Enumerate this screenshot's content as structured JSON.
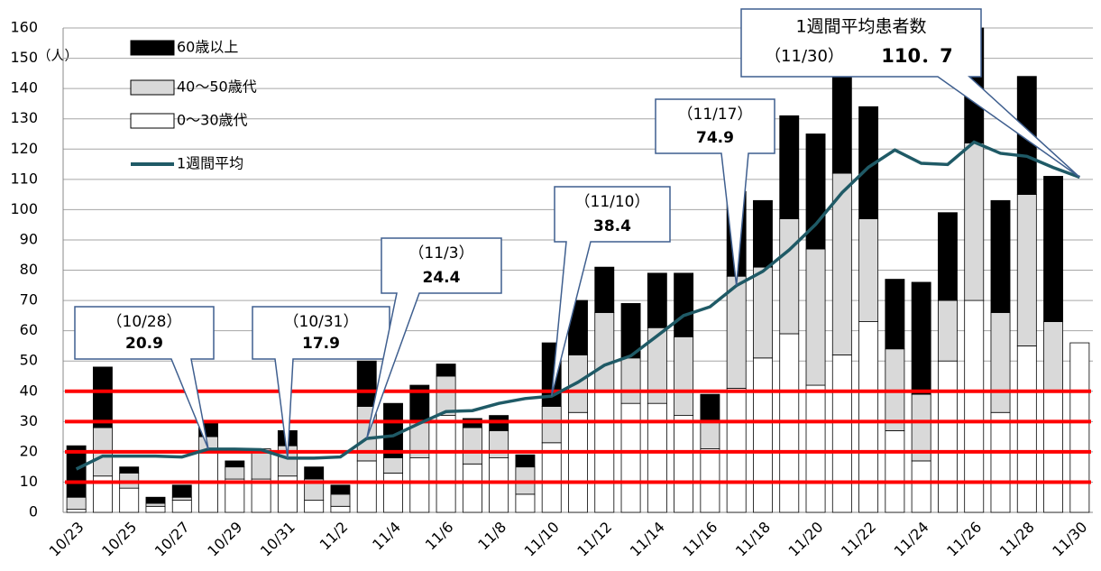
{
  "chart_data": {
    "type": "bar-line",
    "y_unit": "（人）",
    "categories": [
      "10/23",
      null,
      "10/25",
      null,
      "10/27",
      null,
      "10/29",
      null,
      "10/31",
      null,
      "11/2",
      null,
      "11/4",
      null,
      "11/6",
      null,
      "11/8",
      null,
      "11/10",
      null,
      "11/12",
      null,
      "11/14",
      null,
      "11/16",
      null,
      "11/18",
      null,
      "11/20",
      null,
      "11/22",
      null,
      "11/24",
      null,
      "11/26",
      null,
      "11/28",
      null,
      "11/30"
    ],
    "series": [
      {
        "name": "60歳以上",
        "kind": "bar",
        "color": "#000000",
        "values": [
          17,
          20,
          2,
          2,
          4,
          5,
          2,
          0,
          5,
          4,
          3,
          15,
          18,
          12,
          4,
          3,
          5,
          4,
          21,
          18,
          15,
          18,
          18,
          21,
          9,
          28,
          22,
          34,
          38,
          38,
          37,
          23,
          37,
          29,
          38,
          37,
          39,
          48,
          0
        ]
      },
      {
        "name": "40〜50歳代",
        "kind": "bar",
        "color": "#d9d9d9",
        "values": [
          4,
          16,
          5,
          1,
          1,
          5,
          4,
          10,
          10,
          7,
          4,
          18,
          5,
          12,
          13,
          12,
          9,
          9,
          12,
          19,
          26,
          15,
          25,
          26,
          9,
          37,
          30,
          38,
          45,
          60,
          34,
          27,
          22,
          20,
          52,
          33,
          50,
          23,
          0
        ]
      },
      {
        "name": "0〜30歳代",
        "kind": "bar",
        "color": "#ffffff",
        "values": [
          1,
          12,
          8,
          2,
          4,
          20,
          11,
          11,
          12,
          4,
          2,
          17,
          13,
          18,
          32,
          16,
          18,
          6,
          23,
          33,
          40,
          36,
          36,
          32,
          21,
          41,
          51,
          59,
          42,
          52,
          63,
          27,
          17,
          50,
          70,
          33,
          55,
          40,
          56
        ]
      },
      {
        "name": "1週間平均",
        "kind": "line",
        "color": "#1f5a66",
        "values": [
          14.3,
          18.6,
          18.6,
          18.6,
          18.3,
          20.9,
          20.9,
          20.7,
          17.9,
          17.9,
          18.3,
          24.4,
          25.3,
          29.4,
          33.3,
          33.6,
          36.0,
          37.6,
          38.4,
          43.0,
          48.6,
          51.7,
          58.3,
          65.0,
          67.9,
          74.9,
          79.6,
          86.7,
          95.1,
          105.6,
          114.0,
          119.7,
          115.3,
          114.9,
          122.3,
          118.6,
          117.6,
          113.9,
          110.7
        ]
      }
    ],
    "ylim": [
      0,
      160
    ],
    "yticks": [
      0,
      10,
      20,
      30,
      40,
      50,
      60,
      70,
      80,
      90,
      100,
      110,
      120,
      130,
      140,
      150,
      160
    ],
    "grid": true,
    "reference_lines": [
      10,
      20,
      30,
      40
    ],
    "reference_color": "#ff0000",
    "legend": "top-left",
    "annotations": [
      {
        "label": "（10/28）",
        "point": 5
      },
      {
        "label": "（10/31）",
        "point": 8
      },
      {
        "label": "（11/3）",
        "point": 11
      },
      {
        "label": "（11/10）",
        "point": 18
      },
      {
        "label": "（11/17）",
        "point": 25
      },
      {
        "title": "1週間平均患者数",
        "label": "（11/30）",
        "point": 38,
        "value_label": "110．7"
      }
    ]
  }
}
